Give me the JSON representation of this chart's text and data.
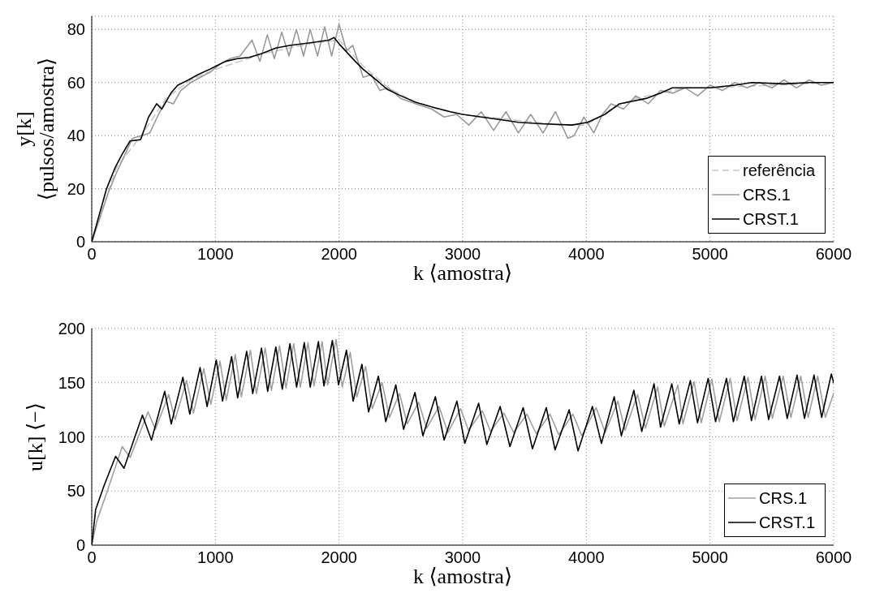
{
  "chart_data": [
    {
      "type": "line",
      "xlabel": "k ⟨amostra⟩",
      "ylabel": "y[k]\n⟨pulsos/amostra⟩",
      "xlim": [
        0,
        6000
      ],
      "xticks": [
        0,
        1000,
        2000,
        3000,
        4000,
        5000,
        6000
      ],
      "ylim": [
        0,
        85
      ],
      "yticks": [
        0,
        20,
        40,
        60,
        80
      ],
      "grid": true,
      "legend": "bottom right",
      "series": [
        {
          "name": "referência",
          "color": "#c8c8c8",
          "line_style": "dashed",
          "x": [
            0,
            200,
            400,
            600,
            800,
            1000,
            1200,
            1400,
            1600,
            1800,
            2000,
            2200,
            2400,
            2600,
            2800,
            3000,
            3200,
            3400,
            3600,
            3800,
            4000,
            4200,
            4400,
            4600,
            4800,
            5000,
            5500,
            6000
          ],
          "values": [
            0,
            28,
            40,
            54,
            61,
            65,
            68,
            71,
            73,
            75,
            76,
            66,
            58,
            53,
            50,
            48,
            47,
            46,
            45,
            44,
            44,
            50,
            54,
            56,
            58,
            58,
            59,
            60
          ]
        },
        {
          "name": "CRS.1",
          "color": "#999999",
          "x": [
            0,
            60,
            130,
            200,
            260,
            330,
            400,
            470,
            540,
            600,
            660,
            720,
            800,
            880,
            960,
            1040,
            1120,
            1200,
            1296,
            1360,
            1420,
            1477,
            1537,
            1595,
            1655,
            1713,
            1767,
            1826,
            1884,
            1940,
            2000,
            2060,
            2111,
            2195,
            2260,
            2330,
            2400,
            2500,
            2620,
            2750,
            2850,
            2950,
            3050,
            3150,
            3250,
            3350,
            3450,
            3550,
            3650,
            3750,
            3850,
            3900,
            3980,
            4060,
            4130,
            4200,
            4300,
            4400,
            4500,
            4600,
            4700,
            4800,
            4900,
            5000,
            5100,
            5200,
            5300,
            5400,
            5500,
            5600,
            5700,
            5800,
            5900,
            6000
          ],
          "values": [
            0,
            8,
            18,
            26,
            32,
            39,
            40,
            41,
            48,
            53,
            52,
            57,
            60,
            62,
            64,
            67,
            69,
            70,
            76,
            68,
            78,
            69,
            79,
            70,
            80,
            70,
            80,
            70,
            81,
            70,
            82,
            72,
            74,
            62,
            63,
            57,
            58,
            54,
            52,
            50,
            47,
            48,
            44,
            49,
            42,
            49,
            41,
            48,
            41,
            49,
            39,
            40,
            47,
            41,
            48,
            52,
            50,
            55,
            52,
            57,
            56,
            58,
            55,
            59,
            57,
            60,
            58,
            60,
            58,
            61,
            58,
            61,
            59,
            60
          ]
        },
        {
          "name": "CRST.1",
          "color": "#000000",
          "x": [
            0,
            54,
            120,
            190,
            246,
            310,
            396,
            460,
            525,
            567,
            640,
            696,
            782,
            860,
            953,
            1082,
            1180,
            1274,
            1380,
            1488,
            1600,
            1767,
            1917,
            1960,
            2002,
            2131,
            2195,
            2300,
            2388,
            2500,
            2623,
            2773,
            2900,
            3000,
            3150,
            3306,
            3450,
            3627,
            3884,
            4011,
            4150,
            4268,
            4482,
            4600,
            4696,
            4850,
            5000,
            5200,
            5338,
            5600,
            5800,
            5959,
            6000
          ],
          "values": [
            0,
            9,
            20,
            28,
            33,
            38,
            38.5,
            47,
            52,
            50,
            56,
            59,
            61,
            63,
            65,
            68,
            69,
            69.5,
            71,
            73,
            74,
            75,
            76,
            77,
            74.5,
            68,
            65,
            61,
            57.5,
            55,
            52.5,
            50.5,
            49,
            48,
            47,
            46,
            45,
            44.5,
            44,
            45,
            48,
            52,
            54,
            56,
            58,
            58,
            58,
            59,
            60,
            59.5,
            60,
            60,
            60
          ]
        }
      ]
    },
    {
      "type": "line",
      "xlabel": "k ⟨amostra⟩",
      "ylabel": "u[k] ⟨−⟩",
      "xlim": [
        0,
        6000
      ],
      "xticks": [
        0,
        1000,
        2000,
        3000,
        4000,
        5000,
        6000
      ],
      "ylim": [
        0,
        200
      ],
      "yticks": [
        0,
        50,
        100,
        150,
        200
      ],
      "grid": true,
      "legend": "bottom right",
      "series": [
        {
          "name": "CRS.1",
          "color": "#a0a0a0",
          "x": [
            0,
            40,
            120,
            247,
            311,
            455,
            515,
            622,
            675,
            767,
            823,
            906,
            963,
            1037,
            1088,
            1161,
            1210,
            1283,
            1332,
            1403,
            1453,
            1519,
            1571,
            1633,
            1687,
            1749,
            1797,
            1863,
            1908,
            1976,
            2026,
            2090,
            2144,
            2215,
            2269,
            2348,
            2408,
            2489,
            2552,
            2644,
            2708,
            2809,
            2880,
            2983,
            3047,
            3159,
            3225,
            3333,
            3412,
            3519,
            3594,
            3706,
            3777,
            3891,
            3963,
            4079,
            4152,
            4255,
            4313,
            4414,
            4478,
            4577,
            4630,
            4740,
            4781,
            4871,
            4929,
            5015,
            5075,
            5163,
            5219,
            5307,
            5365,
            5446,
            5504,
            5592,
            5654,
            5734,
            5794,
            5871,
            5933,
            6000
          ],
          "values": [
            0,
            22,
            48,
            91,
            81,
            123,
            107,
            139,
            116,
            152,
            122,
            163,
            130,
            170,
            134,
            176,
            137,
            180,
            140,
            182,
            143,
            184,
            145,
            186,
            146,
            187,
            147,
            188,
            148,
            190,
            146,
            178,
            137,
            165,
            126,
            150,
            118,
            140,
            112,
            132,
            108,
            128,
            104,
            126,
            106,
            124,
            105,
            122,
            104,
            121,
            103,
            121,
            102,
            121,
            101,
            127,
            104,
            133,
            106,
            139,
            108,
            146,
            110,
            148,
            112,
            151,
            113,
            153,
            114,
            154,
            115,
            155,
            116,
            156,
            117,
            156,
            118,
            156,
            118,
            156,
            118,
            140
          ]
        },
        {
          "name": "CRST.1",
          "color": "#000000",
          "x": [
            0,
            32,
            100,
            193,
            261,
            410,
            483,
            590,
            643,
            737,
            793,
            876,
            933,
            1007,
            1058,
            1131,
            1180,
            1253,
            1302,
            1373,
            1423,
            1489,
            1541,
            1603,
            1657,
            1719,
            1767,
            1833,
            1878,
            1946,
            1996,
            2060,
            2114,
            2185,
            2239,
            2318,
            2378,
            2459,
            2522,
            2614,
            2678,
            2779,
            2850,
            2953,
            3017,
            3129,
            3195,
            3303,
            3382,
            3489,
            3564,
            3676,
            3747,
            3861,
            3933,
            4049,
            4122,
            4225,
            4283,
            4384,
            4448,
            4547,
            4600,
            4691,
            4751,
            4841,
            4899,
            4985,
            5045,
            5133,
            5189,
            5277,
            5335,
            5416,
            5474,
            5562,
            5624,
            5704,
            5764,
            5841,
            5903,
            5981,
            6000
          ],
          "values": [
            0,
            33,
            55,
            82,
            71,
            120,
            97,
            142,
            112,
            155,
            121,
            164,
            128,
            171,
            133,
            174,
            136,
            179,
            140,
            182,
            142,
            183,
            144,
            186,
            146,
            187,
            146,
            188,
            147,
            189,
            148,
            180,
            133,
            167,
            123,
            156,
            114,
            148,
            107,
            141,
            101,
            137,
            97,
            133,
            94,
            131,
            93,
            128,
            91,
            127,
            89,
            127,
            88,
            125,
            87,
            128,
            94,
            137,
            101,
            143,
            105,
            149,
            109,
            149,
            112,
            152,
            113,
            154,
            114,
            154,
            114,
            156,
            115,
            156,
            116,
            156,
            117,
            157,
            117,
            157,
            118,
            158,
            150
          ]
        }
      ]
    }
  ]
}
